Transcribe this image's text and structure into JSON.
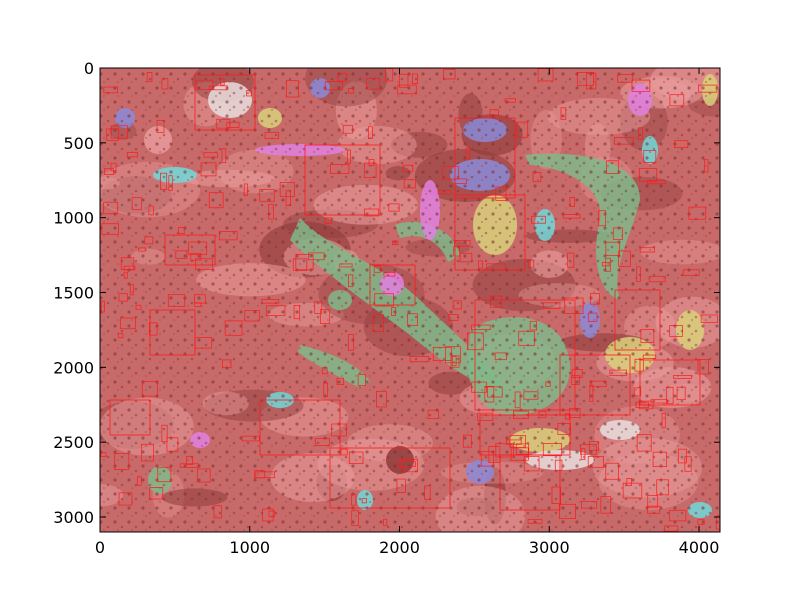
{
  "figure": {
    "x_axis": {
      "range": [
        0,
        4140
      ],
      "ticks": [
        0,
        1000,
        2000,
        3000,
        4000
      ]
    },
    "y_axis": {
      "range": [
        0,
        3100
      ],
      "inverted": true,
      "ticks": [
        0,
        500,
        1000,
        1500,
        2000,
        2500,
        3000
      ]
    },
    "image_description": "histology tissue image with colored segmentation overlay and red bounding boxes",
    "colors": {
      "tissue_base": "#c86a6a",
      "tissue_dark": "#8e3b3b",
      "stroma_pink": "#e89a9a",
      "gland_green": "#7fb88a",
      "yellow": "#d8d07a",
      "blue": "#8a8ad8",
      "magenta": "#e080e0",
      "cyan": "#70d8d8",
      "white_lumen": "#e8dede",
      "box_stroke": "#ff1a1a"
    }
  }
}
